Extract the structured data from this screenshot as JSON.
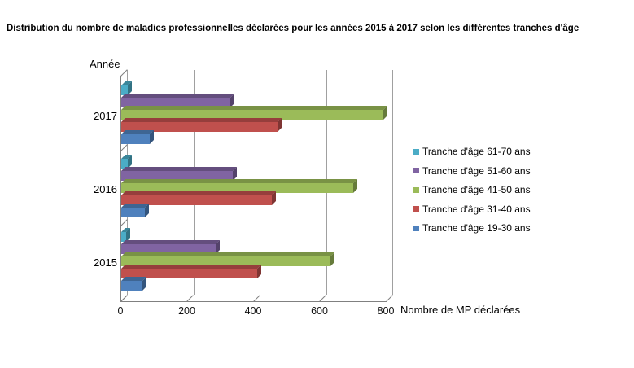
{
  "title": "Distribution du nombre de maladies professionnelles déclarées pour les années 2015 à 2017 selon les différentes tranches d'âge",
  "axes": {
    "y_title": "Année",
    "x_title": "Nombre de MP déclarées"
  },
  "chart_data": {
    "type": "bar",
    "orientation": "horizontal",
    "style": "3d",
    "title": "Distribution du nombre de maladies professionnelles déclarées pour les années 2015 à 2017 selon les différentes tranches d'âge",
    "xlabel": "Nombre de MP déclarées",
    "ylabel": "Année",
    "categories": [
      "2017",
      "2016",
      "2015"
    ],
    "xticks": [
      0,
      200,
      400,
      600,
      800
    ],
    "xlim": [
      0,
      800
    ],
    "grid": true,
    "legend_position": "right",
    "series": [
      {
        "name": "Tranche d'âge 61-70 ans",
        "color": "#4BACC6",
        "values": [
          20,
          20,
          15
        ]
      },
      {
        "name": "Tranche d'âge 51-60 ans",
        "color": "#8064A2",
        "values": [
          330,
          335,
          285
        ]
      },
      {
        "name": "Tranche d'âge 41-50 ans",
        "color": "#9BBB59",
        "values": [
          790,
          700,
          630
        ]
      },
      {
        "name": "Tranche d'âge 31-40 ans",
        "color": "#C0504D",
        "values": [
          470,
          455,
          410
        ]
      },
      {
        "name": "Tranche d'âge 19-30 ans",
        "color": "#4F81BD",
        "values": [
          85,
          70,
          65
        ]
      }
    ]
  },
  "colors": {
    "axis": "#808080",
    "grid": "#A0A0A0",
    "text": "#000000"
  }
}
